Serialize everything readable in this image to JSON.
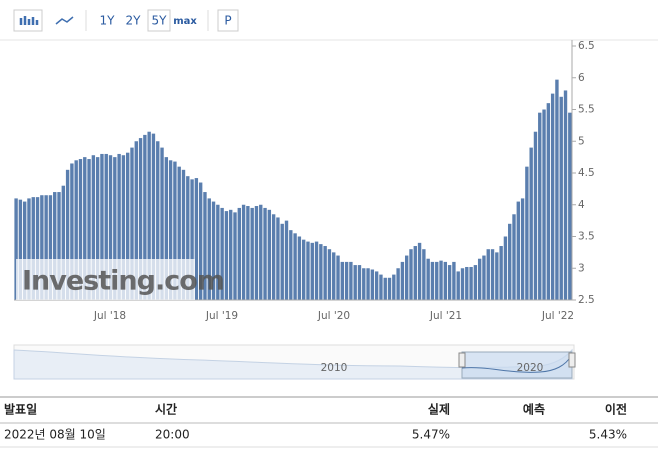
{
  "toolbar": {
    "ranges": [
      "1Y",
      "2Y",
      "5Y",
      "max"
    ],
    "selected": "5Y",
    "extra": "P"
  },
  "chart_data": {
    "type": "bar",
    "watermark": "Investing.com",
    "color": "#5a7eae",
    "xtick_labels": [
      "Jul '18",
      "Jul '19",
      "Jul '20",
      "Jul '21",
      "Jul '22"
    ],
    "ylim": [
      2.5,
      6.5
    ],
    "yticks": [
      2.5,
      3,
      3.5,
      4,
      4.5,
      5,
      5.5,
      6,
      6.5
    ],
    "values": [
      4.1,
      4.08,
      4.05,
      4.1,
      4.12,
      4.12,
      4.15,
      4.15,
      4.15,
      4.2,
      4.2,
      4.3,
      4.55,
      4.65,
      4.7,
      4.72,
      4.75,
      4.72,
      4.78,
      4.75,
      4.8,
      4.8,
      4.78,
      4.75,
      4.8,
      4.78,
      4.82,
      4.9,
      5.0,
      5.05,
      5.1,
      5.15,
      5.12,
      5.0,
      4.9,
      4.75,
      4.7,
      4.68,
      4.6,
      4.55,
      4.45,
      4.4,
      4.42,
      4.35,
      4.2,
      4.1,
      4.05,
      4.0,
      3.95,
      3.9,
      3.92,
      3.88,
      3.95,
      4.0,
      3.98,
      3.95,
      3.98,
      4.0,
      3.95,
      3.92,
      3.85,
      3.8,
      3.7,
      3.75,
      3.6,
      3.55,
      3.5,
      3.45,
      3.42,
      3.4,
      3.42,
      3.38,
      3.35,
      3.3,
      3.25,
      3.2,
      3.1,
      3.1,
      3.1,
      3.05,
      3.05,
      3.0,
      3.0,
      2.98,
      2.95,
      2.9,
      2.85,
      2.85,
      2.9,
      3.0,
      3.1,
      3.2,
      3.3,
      3.35,
      3.4,
      3.3,
      3.15,
      3.1,
      3.1,
      3.12,
      3.1,
      3.05,
      3.1,
      2.95,
      3.0,
      3.02,
      3.02,
      3.05,
      3.15,
      3.2,
      3.3,
      3.3,
      3.25,
      3.35,
      3.5,
      3.7,
      3.85,
      4.05,
      4.1,
      4.6,
      4.9,
      5.15,
      5.45,
      5.5,
      5.6,
      5.75,
      5.97,
      5.7,
      5.8,
      5.45
    ]
  },
  "navigator": {
    "labels": [
      "2010",
      "2020"
    ]
  },
  "table": {
    "header": [
      "발표일",
      "시간",
      "실제",
      "예측",
      "이전"
    ],
    "rows": [
      [
        "2022년 08월 10일",
        "20:00",
        "5.47%",
        "",
        "5.43%"
      ]
    ]
  }
}
